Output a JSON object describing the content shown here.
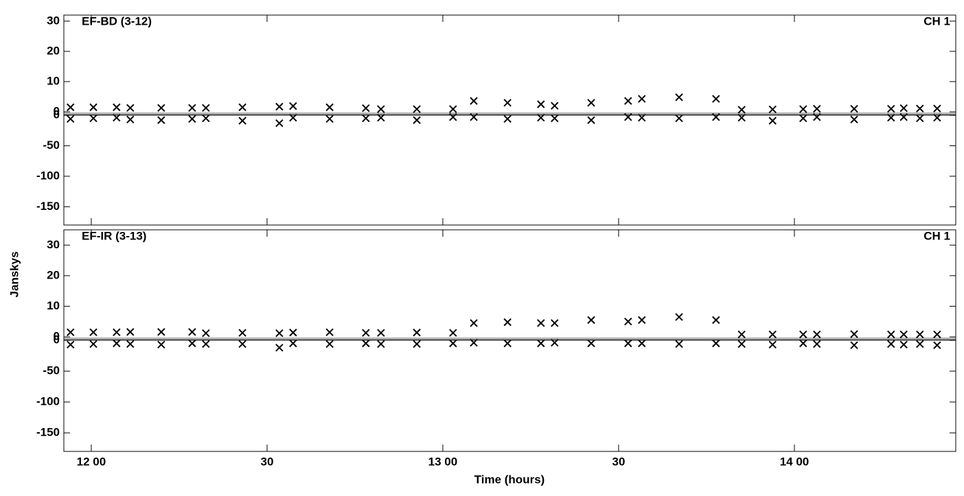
{
  "ylabel": "Janskys",
  "xlabel": "Time (hours)",
  "chart_data": [
    {
      "type": "scatter",
      "title": "EF-BD (3-12)",
      "channel": "CH 1",
      "x": [
        11.941,
        12.006,
        12.072,
        12.111,
        12.199,
        12.287,
        12.326,
        12.43,
        12.535,
        12.574,
        12.678,
        12.781,
        12.824,
        12.926,
        13.029,
        13.088,
        13.184,
        13.279,
        13.318,
        13.422,
        13.527,
        13.566,
        13.672,
        13.777,
        13.85,
        13.938,
        14.025,
        14.064,
        14.17,
        14.275,
        14.311,
        14.357,
        14.406
      ],
      "xlim": [
        11.922,
        14.459
      ],
      "xticks": [
        {
          "value": 12,
          "label": "12 00"
        },
        {
          "value": 12.5,
          "label": "30"
        },
        {
          "value": 13,
          "label": "13 00"
        },
        {
          "value": 13.5,
          "label": "30"
        },
        {
          "value": 14,
          "label": "14 00"
        }
      ],
      "ylim": [
        0,
        32
      ],
      "yticks": [
        0,
        10,
        20,
        30
      ],
      "y2lim": [
        -180,
        0
      ],
      "y2ticks": [
        0,
        -50,
        -100,
        -150
      ],
      "series": [
        {
          "color": "#000000",
          "values": [
            1.5,
            1.5,
            1.5,
            1.3,
            1.3,
            1.3,
            1.3,
            1.5,
            1.7,
            1.9,
            1.5,
            1.2,
            0.9,
            0.9,
            0.9,
            3.6,
            3,
            2.5,
            2,
            3,
            3.6,
            4.3,
            4.8,
            4.3,
            0.7,
            0.8,
            0.9,
            1,
            1,
            1,
            1.2,
            1.1,
            1.1
          ]
        },
        {
          "color": "#000000",
          "axis": "y2",
          "values": [
            -6,
            -5,
            -4,
            -7,
            -8,
            -6,
            -5,
            -9,
            -13,
            -4,
            -6,
            -5,
            -4,
            -8,
            -3,
            -3,
            -6,
            -4,
            -5,
            -8,
            -3,
            -4,
            -5,
            -3,
            -4,
            -9,
            -5,
            -3,
            -7,
            -4,
            -3,
            -5,
            -4
          ]
        }
      ]
    },
    {
      "type": "scatter",
      "title": "EF-IR (3-13)",
      "channel": "CH 1",
      "x": [
        11.941,
        12.006,
        12.072,
        12.111,
        12.199,
        12.287,
        12.326,
        12.43,
        12.535,
        12.574,
        12.678,
        12.781,
        12.824,
        12.926,
        13.029,
        13.088,
        13.184,
        13.279,
        13.318,
        13.422,
        13.527,
        13.566,
        13.672,
        13.777,
        13.85,
        13.938,
        14.025,
        14.064,
        14.17,
        14.275,
        14.311,
        14.357,
        14.406
      ],
      "xlim": [
        11.922,
        14.459
      ],
      "xticks": [
        {
          "value": 12,
          "label": "12 00"
        },
        {
          "value": 12.5,
          "label": "30"
        },
        {
          "value": 13,
          "label": "13 00"
        },
        {
          "value": 13.5,
          "label": "30"
        },
        {
          "value": 14,
          "label": "14 00"
        }
      ],
      "ylim": [
        0,
        35
      ],
      "yticks": [
        0,
        10,
        20,
        30
      ],
      "y2lim": [
        -180,
        0
      ],
      "y2ticks": [
        0,
        -50,
        -100,
        -150
      ],
      "series": [
        {
          "color": "#000000",
          "values": [
            1.5,
            1.5,
            1.5,
            1.6,
            1.6,
            1.6,
            1.2,
            1.3,
            1.2,
            1.4,
            1.5,
            1.3,
            1.3,
            1.4,
            1.3,
            4.5,
            4.8,
            4.5,
            4.5,
            5.5,
            5,
            5.5,
            6.5,
            5.5,
            0.8,
            0.8,
            0.8,
            0.8,
            0.9,
            0.8,
            0.8,
            0.8,
            0.8
          ]
        },
        {
          "color": "#000000",
          "axis": "y2",
          "values": [
            -7,
            -6,
            -5,
            -6,
            -7,
            -5,
            -6,
            -6,
            -12,
            -5,
            -6,
            -5,
            -6,
            -6,
            -5,
            -4,
            -5,
            -5,
            -4,
            -5,
            -5,
            -5,
            -6,
            -5,
            -6,
            -7,
            -5,
            -6,
            -8,
            -6,
            -7,
            -6,
            -8
          ]
        }
      ]
    }
  ]
}
